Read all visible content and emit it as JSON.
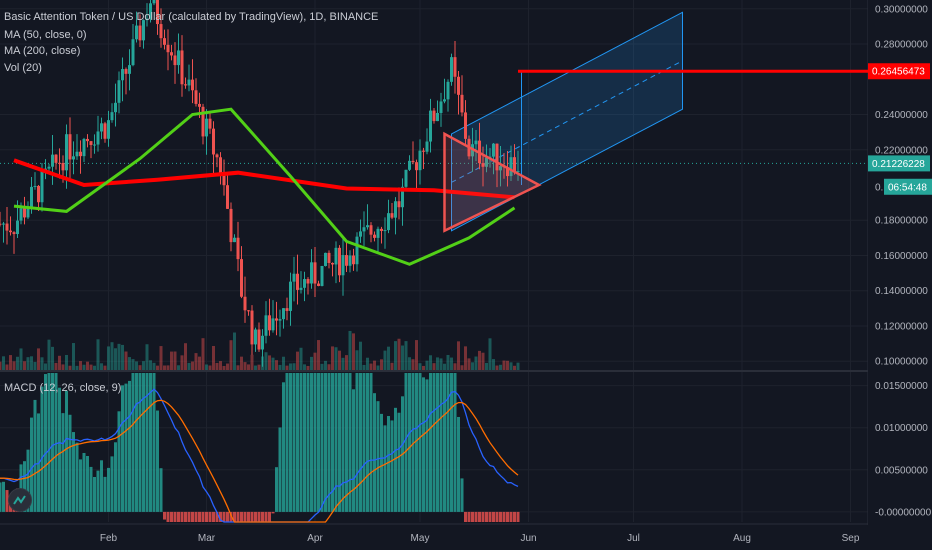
{
  "header": {
    "title": "Basic Attention Token / US Dollar (calculated by TradingView), 1D, BINANCE",
    "ma50": "MA (50, close, 0)",
    "ma200": "MA (200, close)",
    "vol": "Vol (20)",
    "macd": "MACD (12, 26, close, 9)"
  },
  "price_axis": {
    "ticks": [
      "0.30000000",
      "0.28000000",
      "0.24000000",
      "0.22000000",
      "0.18000000",
      "0.16000000",
      "0.14000000",
      "0.12000000",
      "0.10000000"
    ],
    "tag_resistance": "0.26456473",
    "tag_last": "0.21226228",
    "tag_timer_left": "0.",
    "tag_timer": "06:54:48"
  },
  "macd_axis": {
    "ticks": [
      "0.01500000",
      "0.01000000",
      "0.00500000",
      "-0.00000000"
    ]
  },
  "time_axis": {
    "ticks": [
      "Feb",
      "Mar",
      "Apr",
      "May",
      "Jun",
      "Jul",
      "Aug",
      "Sep"
    ]
  },
  "colors": {
    "background": "#131722",
    "up": "#26a69a",
    "down": "#ef5350",
    "ma50": "#52d017",
    "ma200": "#ff0000",
    "channel": "#2196f3",
    "macd_line": "#2962ff",
    "signal_line": "#ff6d00",
    "resistance": "#ff0000"
  },
  "chart_data": {
    "type": "candlestick",
    "symbol": "BATUSD",
    "interval": "1D",
    "price_range": [
      0.095,
      0.305
    ],
    "macd_range": [
      -0.0012,
      0.0165
    ],
    "resistance_level": 0.26456473,
    "last_price": 0.21226228,
    "key_price_path": [
      {
        "date": "2021-01-05",
        "price": 0.178
      },
      {
        "date": "2021-01-20",
        "price": 0.22
      },
      {
        "date": "2021-02-01",
        "price": 0.235
      },
      {
        "date": "2021-02-13",
        "price": 0.305
      },
      {
        "date": "2021-02-25",
        "price": 0.25
      },
      {
        "date": "2021-03-05",
        "price": 0.21
      },
      {
        "date": "2021-03-11",
        "price": 0.14
      },
      {
        "date": "2021-03-15",
        "price": 0.11
      },
      {
        "date": "2021-03-25",
        "price": 0.14
      },
      {
        "date": "2021-04-10",
        "price": 0.16
      },
      {
        "date": "2021-04-25",
        "price": 0.19
      },
      {
        "date": "2021-05-10",
        "price": 0.265
      },
      {
        "date": "2021-05-15",
        "price": 0.22
      },
      {
        "date": "2021-05-28",
        "price": 0.212
      }
    ],
    "ma50_path": [
      {
        "date": "2021-01-05",
        "price": 0.188
      },
      {
        "date": "2021-01-20",
        "price": 0.185
      },
      {
        "date": "2021-02-10",
        "price": 0.215
      },
      {
        "date": "2021-02-25",
        "price": 0.24
      },
      {
        "date": "2021-03-08",
        "price": 0.243
      },
      {
        "date": "2021-03-25",
        "price": 0.205
      },
      {
        "date": "2021-04-10",
        "price": 0.168
      },
      {
        "date": "2021-04-28",
        "price": 0.155
      },
      {
        "date": "2021-05-15",
        "price": 0.17
      },
      {
        "date": "2021-05-28",
        "price": 0.187
      }
    ],
    "ma200_path": [
      {
        "date": "2021-01-05",
        "price": 0.214
      },
      {
        "date": "2021-01-25",
        "price": 0.2
      },
      {
        "date": "2021-02-15",
        "price": 0.203
      },
      {
        "date": "2021-03-10",
        "price": 0.207
      },
      {
        "date": "2021-04-10",
        "price": 0.198
      },
      {
        "date": "2021-05-05",
        "price": 0.197
      },
      {
        "date": "2021-05-28",
        "price": 0.193
      }
    ]
  }
}
